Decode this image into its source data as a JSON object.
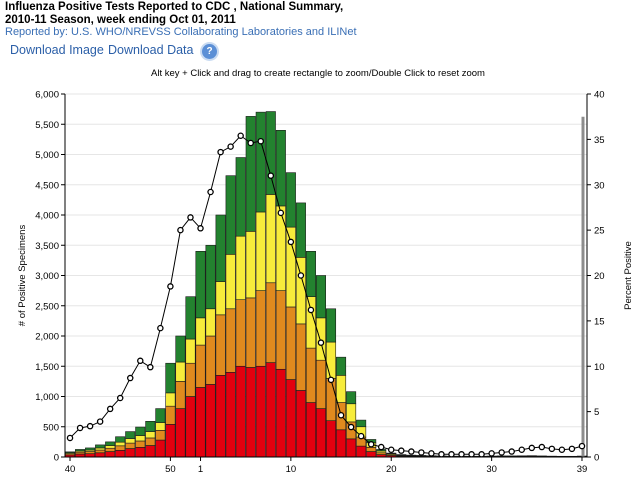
{
  "header": {
    "title_line1": "Influenza Positive Tests Reported to CDC , National Summary,",
    "title_line2": "2010-11 Season, week ending Oct 01, 2011",
    "source": "Reported by: U.S. WHO/NREVSS Collaborating Laboratories and ILINet"
  },
  "toolbar": {
    "download_image": "Download Image",
    "download_data": "Download Data",
    "help_symbol": "?"
  },
  "hint": "Alt key + Click and drag to create rectangle to zoom/Double Click to reset zoom",
  "chart_data": {
    "type": "bar",
    "stacked": true,
    "categories": [
      "40",
      "41",
      "42",
      "43",
      "44",
      "45",
      "46",
      "47",
      "48",
      "49",
      "50",
      "51",
      "52",
      "1",
      "2",
      "3",
      "4",
      "5",
      "6",
      "7",
      "8",
      "9",
      "10",
      "11",
      "12",
      "13",
      "14",
      "15",
      "16",
      "17",
      "18",
      "19",
      "20",
      "21",
      "22",
      "23",
      "24",
      "25",
      "26",
      "27",
      "28",
      "29",
      "30",
      "31",
      "32",
      "33",
      "34",
      "35",
      "36",
      "37",
      "38",
      "39"
    ],
    "x_tick_labels": [
      {
        "week": "40",
        "index": 0
      },
      {
        "week": "50",
        "index": 10
      },
      {
        "week": "1",
        "index": 13
      },
      {
        "week": "10",
        "index": 22
      },
      {
        "week": "20",
        "index": 32
      },
      {
        "week": "30",
        "index": 42
      },
      {
        "week": "39",
        "index": 51
      }
    ],
    "series_colors": [
      "#e3000f",
      "#e08a1e",
      "#f7ec3b",
      "#23822f"
    ],
    "series": [
      {
        "values": [
          35,
          50,
          55,
          70,
          90,
          110,
          140,
          160,
          190,
          280,
          540,
          800,
          1000,
          1150,
          1200,
          1350,
          1400,
          1500,
          1480,
          1500,
          1560,
          1450,
          1280,
          1100,
          900,
          800,
          600,
          450,
          300,
          180,
          90,
          40,
          25,
          15,
          12,
          10,
          8,
          6,
          5,
          5,
          4,
          4,
          5,
          6,
          6,
          7,
          8,
          6,
          5,
          4,
          4,
          6
        ]
      },
      {
        "values": [
          20,
          30,
          35,
          45,
          55,
          75,
          90,
          105,
          125,
          160,
          300,
          450,
          550,
          700,
          800,
          1000,
          1050,
          1100,
          1150,
          1250,
          1320,
          1300,
          1200,
          1100,
          900,
          800,
          700,
          450,
          280,
          150,
          70,
          30,
          15,
          10,
          8,
          7,
          6,
          5,
          4,
          4,
          4,
          4,
          5,
          5,
          5,
          6,
          6,
          5,
          4,
          3,
          3,
          4
        ]
      },
      {
        "values": [
          15,
          20,
          25,
          35,
          45,
          60,
          75,
          90,
          105,
          130,
          220,
          320,
          400,
          450,
          450,
          550,
          900,
          1050,
          1100,
          1300,
          1460,
          1400,
          1320,
          1100,
          850,
          700,
          600,
          450,
          300,
          170,
          75,
          30,
          15,
          8,
          6,
          5,
          4,
          3,
          3,
          3,
          3,
          3,
          3,
          4,
          4,
          4,
          5,
          4,
          3,
          3,
          3,
          3
        ]
      },
      {
        "values": [
          15,
          25,
          35,
          50,
          60,
          90,
          115,
          140,
          170,
          230,
          490,
          430,
          700,
          1100,
          1050,
          1100,
          1300,
          1300,
          1900,
          1650,
          1370,
          1250,
          900,
          900,
          750,
          700,
          550,
          300,
          200,
          110,
          55,
          25,
          10,
          7,
          5,
          4,
          3,
          3,
          2,
          2,
          2,
          2,
          2,
          3,
          3,
          3,
          3,
          2,
          2,
          2,
          2,
          2
        ]
      }
    ],
    "line": {
      "values": [
        2.1,
        3.2,
        3.4,
        3.9,
        5.3,
        6.5,
        8.7,
        10.6,
        9.9,
        14.2,
        18.8,
        25.0,
        26.4,
        25.2,
        29.2,
        33.6,
        34.2,
        35.4,
        34.6,
        34.8,
        31.0,
        26.9,
        23.7,
        20.0,
        16.2,
        12.6,
        8.5,
        4.6,
        3.3,
        2.3,
        1.4,
        1.1,
        0.8,
        0.7,
        0.6,
        0.5,
        0.4,
        0.3,
        0.3,
        0.3,
        0.3,
        0.3,
        0.4,
        0.5,
        0.6,
        0.8,
        1.0,
        1.1,
        0.9,
        0.8,
        0.9,
        1.2
      ]
    },
    "ylabel": "# of Positive Specimens",
    "y2label": "Percent Positive",
    "ylim": [
      0,
      6000
    ],
    "y2lim": [
      0,
      40
    ],
    "yticks": [
      0,
      500,
      1000,
      1500,
      2000,
      2500,
      3000,
      3500,
      4000,
      4500,
      5000,
      5500,
      6000
    ],
    "y2ticks": [
      0,
      5,
      10,
      15,
      20,
      25,
      30,
      35,
      40
    ],
    "grid": true
  }
}
